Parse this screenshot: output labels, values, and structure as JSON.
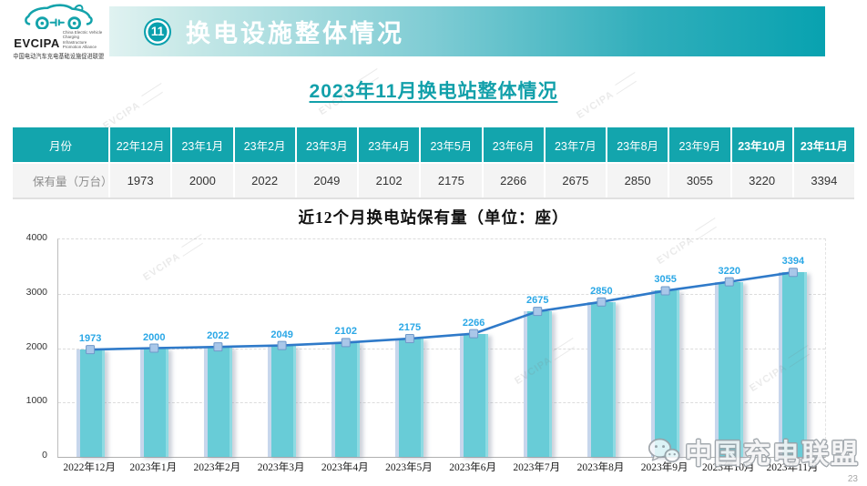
{
  "header": {
    "logo": {
      "brand": "EVCIPA",
      "tagline_en": "China Electric Vehicle Charging Infrastructure Promotion Alliance",
      "tagline_cn": "中国电动汽车充电基础设施促进联盟"
    },
    "badge": "11",
    "title": "换电设施整体情况"
  },
  "subtitle": "2023年11月换电站整体情况",
  "table": {
    "header_label": "月份",
    "row_label": "保有量（万台）",
    "columns": [
      "22年12月",
      "23年1月",
      "23年2月",
      "23年3月",
      "23年4月",
      "23年5月",
      "23年6月",
      "23年7月",
      "23年8月",
      "23年9月",
      "23年10月",
      "23年11月"
    ],
    "values": [
      "1973",
      "2000",
      "2022",
      "2049",
      "2102",
      "2175",
      "2266",
      "2675",
      "2850",
      "3055",
      "3220",
      "3394"
    ]
  },
  "chart_data": {
    "type": "bar",
    "overlay": "line",
    "title": "近12个月换电站保有量（单位：座）",
    "categories": [
      "2022年12月",
      "2023年1月",
      "2023年2月",
      "2023年3月",
      "2023年4月",
      "2023年5月",
      "2023年6月",
      "2023年7月",
      "2023年8月",
      "2023年9月",
      "2023年10月",
      "2023年11月"
    ],
    "values": [
      1973,
      2000,
      2022,
      2049,
      2102,
      2175,
      2266,
      2675,
      2850,
      3055,
      3220,
      3394
    ],
    "ylim": [
      0,
      4000
    ],
    "yticks": [
      "0",
      "1000",
      "2000",
      "3000",
      "4000"
    ],
    "grid": "dashed-horizontal",
    "legend": "none",
    "bar_color": "#68ccd7",
    "line_color": "#2f7ac9",
    "marker_fill": "#a9c7e9",
    "marker_stroke": "#6f98c9",
    "label_color": "#2aa7e6"
  },
  "footer": {
    "watermark_text": "中国充电联盟",
    "brand_watermark": "EVCIPA",
    "page_number": "23"
  },
  "colors": {
    "band_teal_dark": "#08a2b0",
    "band_teal_light": "#c9e9e8",
    "table_header_teal": "#13a5ad",
    "subtitle_teal": "#12a0aa"
  }
}
